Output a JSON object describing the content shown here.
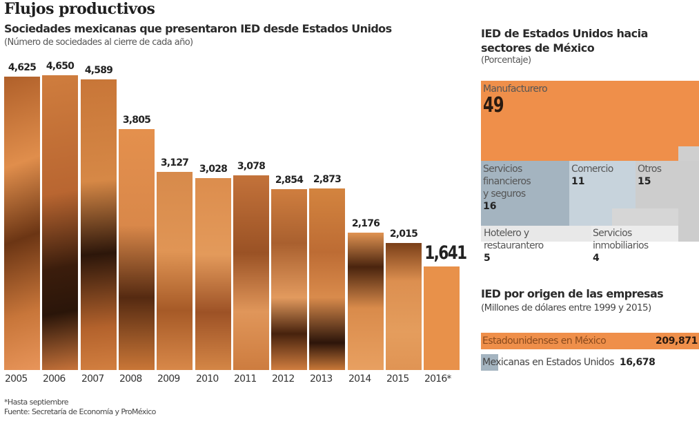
{
  "header": {
    "title": "Flujos productivos",
    "subtitle": "Sociedades mexicanas que presentaron IED desde Estados Unidos",
    "note": "(Número de sociedades al cierre de cada año)"
  },
  "footer": {
    "footnote": "*Hasta septiembre",
    "source": "Fuente: Secretaría de Economía y ProMéxico"
  },
  "sectors": {
    "title_line1": "IED de Estados Unidos hacia",
    "title_line2": "sectores de México",
    "unit": "(Porcentaje)",
    "tiles": [
      {
        "label": "Manufacturero",
        "value": "49"
      },
      {
        "label_lines": [
          "Servicios",
          "financieros",
          "y seguros"
        ],
        "value": "16"
      },
      {
        "label": "Comercio",
        "value": "11"
      },
      {
        "label": "Otros",
        "value": "15"
      },
      {
        "label_lines": [
          "Hotelero y",
          "restaurantero"
        ],
        "value": "5"
      },
      {
        "label_lines": [
          "Servicios",
          "inmobiliarios"
        ],
        "value": "4"
      }
    ]
  },
  "origin": {
    "title": "IED por origen de las empresas",
    "unit": "(Millones de dólares entre 1999 y 2015)",
    "rows": [
      {
        "label": "Estadounidenses en México",
        "value": "209,871"
      },
      {
        "label": "Mexicanas en Estados Unidos",
        "value": "16,678"
      }
    ]
  },
  "colors": {
    "accent_orange": "#ef8f4a",
    "slate_blue": "#a4b4c0",
    "light_blue": "#c7d3dc",
    "gray": "#cdcdcd"
  },
  "chart_data": [
    {
      "type": "bar",
      "title": "Sociedades mexicanas que presentaron IED desde Estados Unidos",
      "subtitle": "(Número de sociedades al cierre de cada año)",
      "categories": [
        "2005",
        "2006",
        "2007",
        "2008",
        "2009",
        "2010",
        "2011",
        "2012",
        "2013",
        "2014",
        "2015",
        "2016*"
      ],
      "values": [
        4625,
        4650,
        4589,
        3805,
        3127,
        3028,
        3078,
        2854,
        2873,
        2176,
        2015,
        1641
      ],
      "value_labels": [
        "4,625",
        "4,650",
        "4,589",
        "3,805",
        "3,127",
        "3,028",
        "3,078",
        "2,854",
        "2,873",
        "2,176",
        "2,015",
        "1,641"
      ],
      "xlabel": "",
      "ylabel": "",
      "ylim": [
        0,
        4650
      ],
      "grid": false,
      "annotations": [
        "*Hasta septiembre"
      ]
    },
    {
      "type": "treemap",
      "title": "IED de Estados Unidos hacia sectores de México",
      "subtitle": "(Porcentaje)",
      "categories": [
        "Manufacturero",
        "Servicios financieros y seguros",
        "Comercio",
        "Otros",
        "Hotelero y restaurantero",
        "Servicios inmobiliarios"
      ],
      "values": [
        49,
        16,
        11,
        15,
        5,
        4
      ]
    },
    {
      "type": "bar",
      "orientation": "horizontal",
      "title": "IED por origen de las empresas",
      "subtitle": "(Millones de dólares entre 1999 y 2015)",
      "categories": [
        "Estadounidenses en México",
        "Mexicanas en Estados Unidos"
      ],
      "values": [
        209871,
        16678
      ]
    }
  ]
}
